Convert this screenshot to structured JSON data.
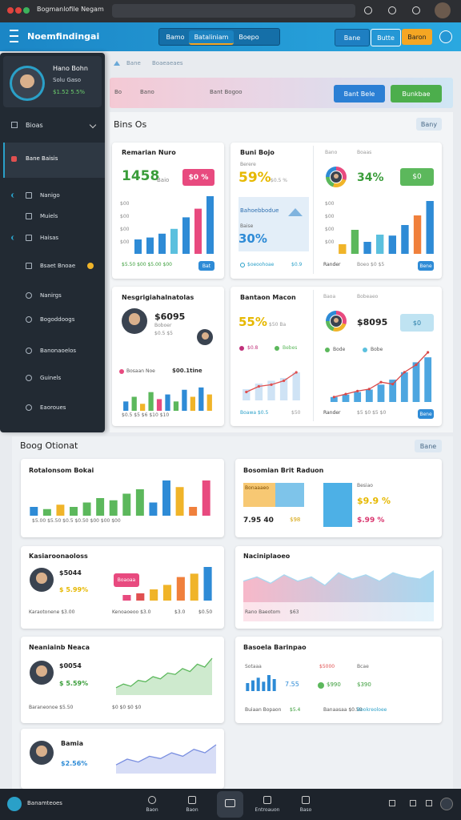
{
  "browser": {
    "tab": "Bogmanlofile Negam"
  },
  "header": {
    "title": "Noemfindingai",
    "segments": [
      "Bamo",
      "Bataliniam",
      "Boepo"
    ],
    "buttons": [
      "Bane",
      "Butte",
      "Baron"
    ]
  },
  "sidebar": {
    "name": "Hano Bohn",
    "role": "Solu Gaso",
    "stat": "$1.52 5.5%",
    "section": "Bioas",
    "active": "Bane Baisis",
    "items": [
      "Nanigo",
      "Muiels",
      "Haisas",
      "Bsaet Bnoae",
      "Nanirgs",
      "Bogoddoogs",
      "Banonaoelos",
      "Guinels",
      "Eaoroues"
    ]
  },
  "breadcrumb": [
    "Bane",
    "Boaeaeaes"
  ],
  "banner": {
    "left": [
      "Bo",
      "Bano"
    ],
    "mid": "Bant Bogoo",
    "buttons": [
      "Bant Bele",
      "Bunkbae"
    ]
  },
  "section1": {
    "title": "Bins Os",
    "button": "Bany"
  },
  "cards": [
    {
      "title": "Remarian Nuro",
      "big": "1458",
      "sub": "Baio",
      "badge": "$0 %",
      "yticks": [
        "$00",
        "$00",
        "$00",
        "$00"
      ],
      "footer": "$5.50 $00 $5.00 $00",
      "button": "Bat",
      "chart": {
        "type": "bar",
        "values": [
          3,
          3.4,
          4.2,
          5.2,
          7.6,
          9.4,
          12
        ],
        "colors": [
          "#2e8bd6",
          "#2e8bd6",
          "#2e8bd6",
          "#5bc0de",
          "#2e8bd6",
          "#e84a7f",
          "#2e8bd6"
        ],
        "ylim": [
          0,
          12
        ]
      }
    },
    {
      "title": "Buni Bojo",
      "sub": "Berere",
      "big": "59%",
      "note": "$0.5 %",
      "box_title": "Bahoebbodue",
      "box_sub": "Baise",
      "box_big": "30%",
      "footer": [
        "$oeoohoae",
        "$0.9"
      ]
    },
    {
      "labels": [
        "Bano",
        "Boaas"
      ],
      "big": "34%",
      "badge": "$0",
      "yticks": [
        "$00",
        "$00",
        "$00",
        "$00"
      ],
      "footer": [
        "Rander",
        "Boeo $0 $5",
        "Bene"
      ],
      "chart": {
        "type": "bar",
        "values": [
          2,
          5,
          2.5,
          4,
          3.8,
          6,
          8,
          11
        ],
        "colors": [
          "#f0b429",
          "#5cb85c",
          "#2e8bd6",
          "#5bc0de",
          "#2e8bd6",
          "#2e8bd6",
          "#f0803c",
          "#2e8bd6"
        ],
        "ylim": [
          0,
          12
        ]
      }
    },
    {
      "title": "Nesgrigiahalnatolas",
      "big": "$6095",
      "sub": "Boboer",
      "note": "$0.5 $5",
      "legend": "Bosaan Noe",
      "value": "$00.1tine",
      "footer": "$0.5 $5 $6 $10 $10",
      "chart": {
        "type": "bar",
        "values": [
          2,
          3,
          1.5,
          4,
          2.5,
          3.5,
          2,
          4.5,
          3,
          5,
          3.5
        ],
        "colors": [
          "#2e8bd6",
          "#5cb85c",
          "#f0b429",
          "#5cb85c",
          "#e84a7f",
          "#2e8bd6",
          "#5cb85c",
          "#2e8bd6",
          "#f0b429",
          "#2e8bd6",
          "#f0b429"
        ],
        "ylim": [
          0,
          6
        ]
      }
    },
    {
      "title": "Bantaon Macon",
      "big": "55%",
      "note": "$50 Ba",
      "legend": [
        "$0.8",
        "Bebes"
      ],
      "footer": [
        "Boawa $0.5",
        "$50"
      ],
      "chart": {
        "type": "combo",
        "bars": {
          "values": [
            2,
            3,
            3.5,
            4,
            5
          ],
          "color": "#cfe3f5"
        },
        "line": {
          "values": [
            1.5,
            2.5,
            2.8,
            3.5,
            5
          ],
          "color": "#e05050"
        },
        "ylim": [
          0,
          6
        ]
      }
    },
    {
      "labels": [
        "Baoa",
        "Bobeaeo"
      ],
      "big": "$8095",
      "badge": "$0",
      "legend": [
        "Bode",
        "Bobe"
      ],
      "footer": [
        "Rander",
        "$5 $0 $5 $0",
        "Bene"
      ],
      "chart": {
        "type": "combo",
        "bars": {
          "values": [
            1,
            1.5,
            2,
            2.5,
            3.5,
            4.5,
            6,
            8,
            9
          ],
          "color": "#4da6e0"
        },
        "line": {
          "values": [
            1,
            1.6,
            2.2,
            2.6,
            4,
            3.6,
            6,
            7.5,
            10
          ],
          "color": "#d94848"
        },
        "ylim": [
          0,
          10
        ]
      }
    }
  ],
  "section2": {
    "title": "Boog Otionat",
    "button": "Bane"
  },
  "panels": [
    {
      "title": "Rotalonsom Bokai",
      "footer": "$5.00 $5.50 $0.5 $0.50 $00 $00 $00",
      "chart": {
        "type": "bar",
        "values": [
          2,
          1.5,
          2.5,
          2,
          3,
          4,
          3.5,
          5,
          6,
          3,
          8,
          6.5,
          2,
          8
        ],
        "colors": [
          "#2e8bd6",
          "#5cb85c",
          "#f0b429",
          "#5cb85c",
          "#5cb85c",
          "#5cb85c",
          "#5cb85c",
          "#5cb85c",
          "#5cb85c",
          "#2e8bd6",
          "#2e8bd6",
          "#f0b429",
          "#f0803c",
          "#e84a7f"
        ],
        "ylim": [
          0,
          8
        ]
      }
    },
    {
      "title": "Bosomian Brit Raduon",
      "box": "Bonaaaeo",
      "left_big": "7.95 40",
      "left_val": "$98",
      "right_title": "Besiao",
      "right_big": "$9.9 %",
      "right_val": "$.99 %"
    },
    {
      "title": "Kasiaroonaoloss",
      "big": "$5044",
      "sub": "$ 5.99%",
      "badge": "Boaoaa",
      "footer": [
        "Karaotonene $3.00",
        "Kenoaoeoo $3.0",
        "$3.0",
        "$0.50"
      ],
      "chart": {
        "type": "bar",
        "values": [
          1,
          1.3,
          2,
          2.8,
          4.2,
          4.8,
          6
        ],
        "colors": [
          "#e84a7f",
          "#e05050",
          "#f0b429",
          "#f0b429",
          "#f0803c",
          "#f0b429",
          "#2e8bd6"
        ],
        "ylim": [
          0,
          6
        ]
      }
    },
    {
      "title": "Naciniplaoeo",
      "footer": [
        "Rano Baeotom",
        "$63"
      ],
      "chart": {
        "type": "area",
        "values": [
          5,
          6,
          4.5,
          6.5,
          5,
          6,
          4,
          7,
          5.5,
          6.5,
          5,
          7,
          6,
          5.5,
          7.5
        ],
        "colors": [
          "#f7b8c9",
          "#a8d8f0"
        ],
        "ylim": [
          0,
          8
        ]
      }
    },
    {
      "title": "Neaniainb Neaca",
      "big": "$0054",
      "sub": "$ 5.59%",
      "footer": [
        "Baraneonoe $5.50",
        "$0 $0 $0 $0"
      ],
      "chart": {
        "type": "area",
        "values": [
          1,
          1.5,
          1.2,
          2,
          1.8,
          2.5,
          2.2,
          3,
          2.8,
          3.6,
          3.2,
          4.2,
          3.8,
          5
        ],
        "colors": [
          "#5cb85c"
        ],
        "ylim": [
          0,
          5
        ]
      }
    },
    {
      "title": "Basoela Barinpao",
      "labels": [
        "Sotaaa",
        "$5000",
        "Bcae"
      ],
      "big": "7.55",
      "vals": [
        "$990",
        "$390"
      ],
      "footer": [
        "Buiaan Bopaon",
        "$5.4",
        "Banaasaa $0.50",
        "Bookreoloee"
      ],
      "chart": {
        "type": "bar",
        "values": [
          3,
          4,
          5,
          3.5,
          6,
          4.5
        ],
        "colors": [
          "#2e8bd6",
          "#2e8bd6",
          "#2e8bd6",
          "#2e8bd6",
          "#2e8bd6",
          "#2e8bd6"
        ],
        "ylim": [
          0,
          6
        ]
      }
    },
    {
      "title": "Bamia",
      "sub": "$2.56%",
      "chart": {
        "type": "area",
        "values": [
          1.5,
          2.5,
          2,
          3,
          2.6,
          3.6,
          3,
          4.2,
          3.6,
          5
        ],
        "colors": [
          "#7a8fe0"
        ],
        "ylim": [
          0,
          5
        ]
      }
    }
  ],
  "bottom": {
    "app": "Banamteoes",
    "nav": [
      "Baon",
      "Baon",
      "Entroauon",
      "Baso"
    ]
  }
}
